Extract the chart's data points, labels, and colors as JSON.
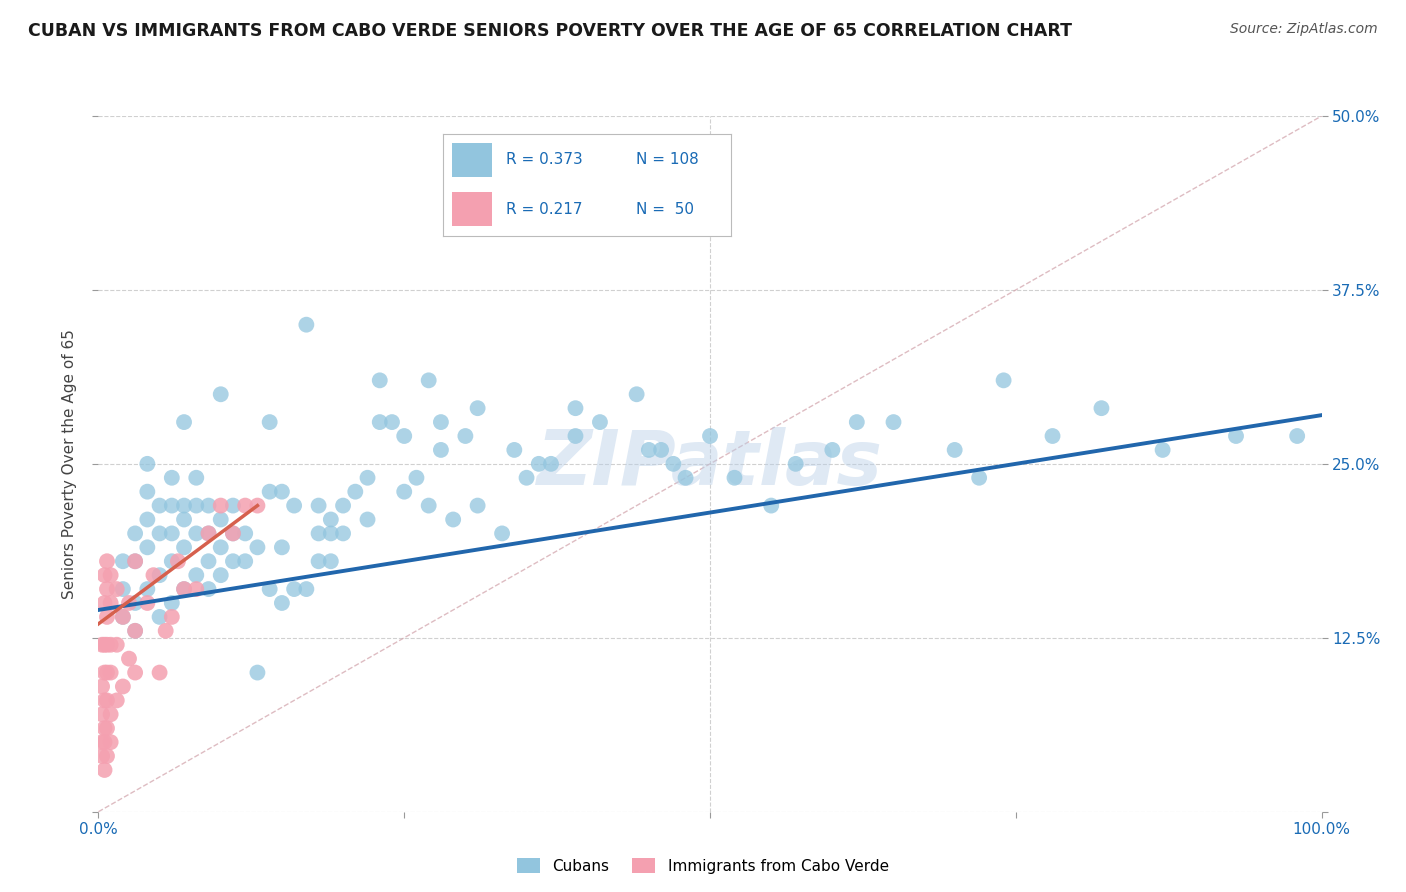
{
  "title": "CUBAN VS IMMIGRANTS FROM CABO VERDE SENIORS POVERTY OVER THE AGE OF 65 CORRELATION CHART",
  "source": "Source: ZipAtlas.com",
  "ylabel": "Seniors Poverty Over the Age of 65",
  "xlim": [
    0,
    100
  ],
  "ylim": [
    0,
    50
  ],
  "yticks": [
    0,
    12.5,
    25.0,
    37.5,
    50.0
  ],
  "ytick_labels_right": [
    "",
    "12.5%",
    "25.0%",
    "37.5%",
    "50.0%"
  ],
  "background_color": "#ffffff",
  "grid_color": "#d0d0d0",
  "watermark": "ZIPatlas",
  "blue_color": "#92c5de",
  "blue_line_color": "#2166ac",
  "pink_color": "#f4a582",
  "pink_dot_color": "#f4a0b0",
  "pink_line_color": "#d6604d",
  "diagonal_color": "#d0a0a8",
  "legend_text_color": "#1a6bb5",
  "cubans_x": [
    2,
    2,
    2,
    3,
    3,
    3,
    3,
    4,
    4,
    4,
    4,
    4,
    5,
    5,
    5,
    5,
    6,
    6,
    6,
    6,
    6,
    7,
    7,
    7,
    7,
    7,
    8,
    8,
    8,
    8,
    9,
    9,
    9,
    9,
    10,
    10,
    10,
    10,
    11,
    11,
    11,
    12,
    12,
    13,
    13,
    14,
    14,
    14,
    15,
    15,
    15,
    16,
    16,
    17,
    17,
    18,
    18,
    18,
    19,
    19,
    19,
    20,
    20,
    21,
    22,
    22,
    23,
    23,
    24,
    25,
    25,
    26,
    27,
    27,
    28,
    28,
    29,
    30,
    31,
    31,
    33,
    34,
    35,
    36,
    37,
    39,
    39,
    41,
    44,
    45,
    46,
    47,
    48,
    50,
    52,
    55,
    57,
    60,
    62,
    65,
    70,
    72,
    74,
    78,
    82,
    87,
    93,
    98
  ],
  "cubans_y": [
    14,
    16,
    18,
    13,
    15,
    18,
    20,
    16,
    19,
    21,
    23,
    25,
    14,
    17,
    20,
    22,
    15,
    18,
    20,
    22,
    24,
    16,
    19,
    21,
    22,
    28,
    17,
    20,
    22,
    24,
    16,
    18,
    20,
    22,
    17,
    19,
    21,
    30,
    18,
    20,
    22,
    18,
    20,
    10,
    19,
    16,
    23,
    28,
    15,
    19,
    23,
    16,
    22,
    16,
    35,
    18,
    20,
    22,
    18,
    20,
    21,
    20,
    22,
    23,
    21,
    24,
    28,
    31,
    28,
    27,
    23,
    24,
    22,
    31,
    28,
    26,
    21,
    27,
    22,
    29,
    20,
    26,
    24,
    25,
    25,
    27,
    29,
    28,
    30,
    26,
    26,
    25,
    24,
    27,
    24,
    22,
    25,
    26,
    28,
    28,
    26,
    24,
    31,
    27,
    29,
    26,
    27,
    27
  ],
  "caboverde_x": [
    0.3,
    0.3,
    0.3,
    0.3,
    0.3,
    0.5,
    0.5,
    0.5,
    0.5,
    0.5,
    0.5,
    0.5,
    0.5,
    0.7,
    0.7,
    0.7,
    0.7,
    0.7,
    0.7,
    0.7,
    0.7,
    1.0,
    1.0,
    1.0,
    1.0,
    1.0,
    1.0,
    1.5,
    1.5,
    1.5,
    2.0,
    2.0,
    2.5,
    2.5,
    3.0,
    3.0,
    3.0,
    4.0,
    4.5,
    5.0,
    5.5,
    6.0,
    6.5,
    7.0,
    8.0,
    9.0,
    10.0,
    11.0,
    12.0,
    13.0
  ],
  "caboverde_y": [
    4,
    5,
    7,
    9,
    12,
    3,
    5,
    6,
    8,
    10,
    12,
    15,
    17,
    4,
    6,
    8,
    10,
    12,
    14,
    16,
    18,
    5,
    7,
    10,
    12,
    15,
    17,
    8,
    12,
    16,
    9,
    14,
    11,
    15,
    10,
    13,
    18,
    15,
    17,
    10,
    13,
    14,
    18,
    16,
    16,
    20,
    22,
    20,
    22,
    22
  ],
  "blue_trend": [
    14.5,
    28.5
  ],
  "pink_trend_x": [
    0,
    13
  ],
  "pink_trend_y": [
    13.5,
    22.0
  ]
}
